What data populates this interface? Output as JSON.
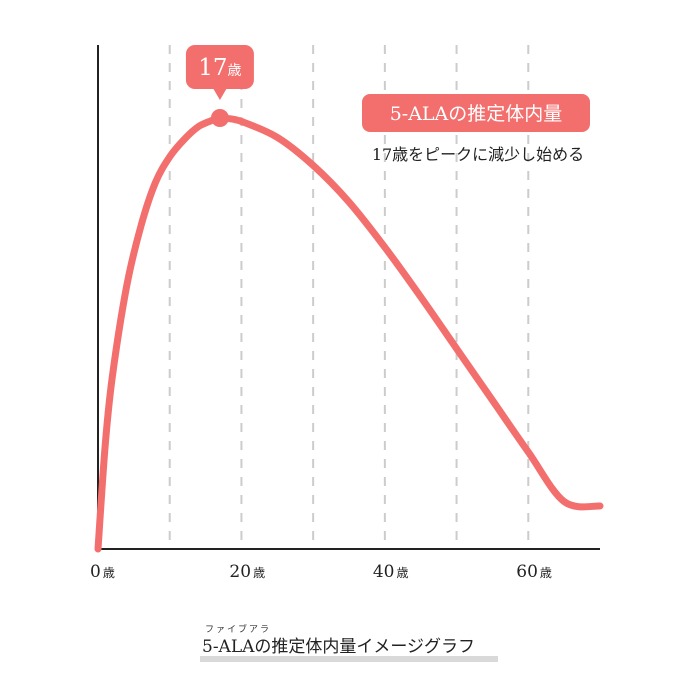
{
  "chart_data": {
    "type": "line",
    "title": "5-ALAの推定体内量",
    "subtitle": "17歳をピークに減少し始める",
    "peak_label": "17",
    "peak_unit": "歳",
    "xlim": [
      0,
      70
    ],
    "ylim": [
      0,
      100
    ],
    "x_ticks": [
      {
        "value": 0,
        "label": "0",
        "unit": "歳"
      },
      {
        "value": 20,
        "label": "20",
        "unit": "歳"
      },
      {
        "value": 40,
        "label": "40",
        "unit": "歳"
      },
      {
        "value": 60,
        "label": "60",
        "unit": "歳"
      }
    ],
    "grid_x": [
      10,
      20,
      30,
      40,
      50,
      60
    ],
    "grid": true,
    "series": [
      {
        "color": "#f26f6d",
        "x": [
          0,
          1,
          2,
          4,
          6,
          8,
          10,
          12,
          14,
          16,
          17,
          18,
          20,
          25,
          30,
          35,
          40,
          45,
          50,
          55,
          60,
          65,
          70
        ],
        "y": [
          0,
          24,
          40,
          61,
          75,
          85,
          91,
          95,
          98,
          99.5,
          100,
          99.9,
          99.2,
          95.5,
          89,
          80.5,
          70,
          58.5,
          46.5,
          34.5,
          22.5,
          11,
          0
        ]
      }
    ],
    "peak": {
      "x": 17,
      "y": 100
    }
  },
  "caption": {
    "ruby": "ファイブアラ",
    "text": "5-ALAの推定体内量イメージグラフ"
  },
  "colors": {
    "accent": "#f26f6d",
    "axis": "#222222",
    "grid": "#cccccc"
  }
}
